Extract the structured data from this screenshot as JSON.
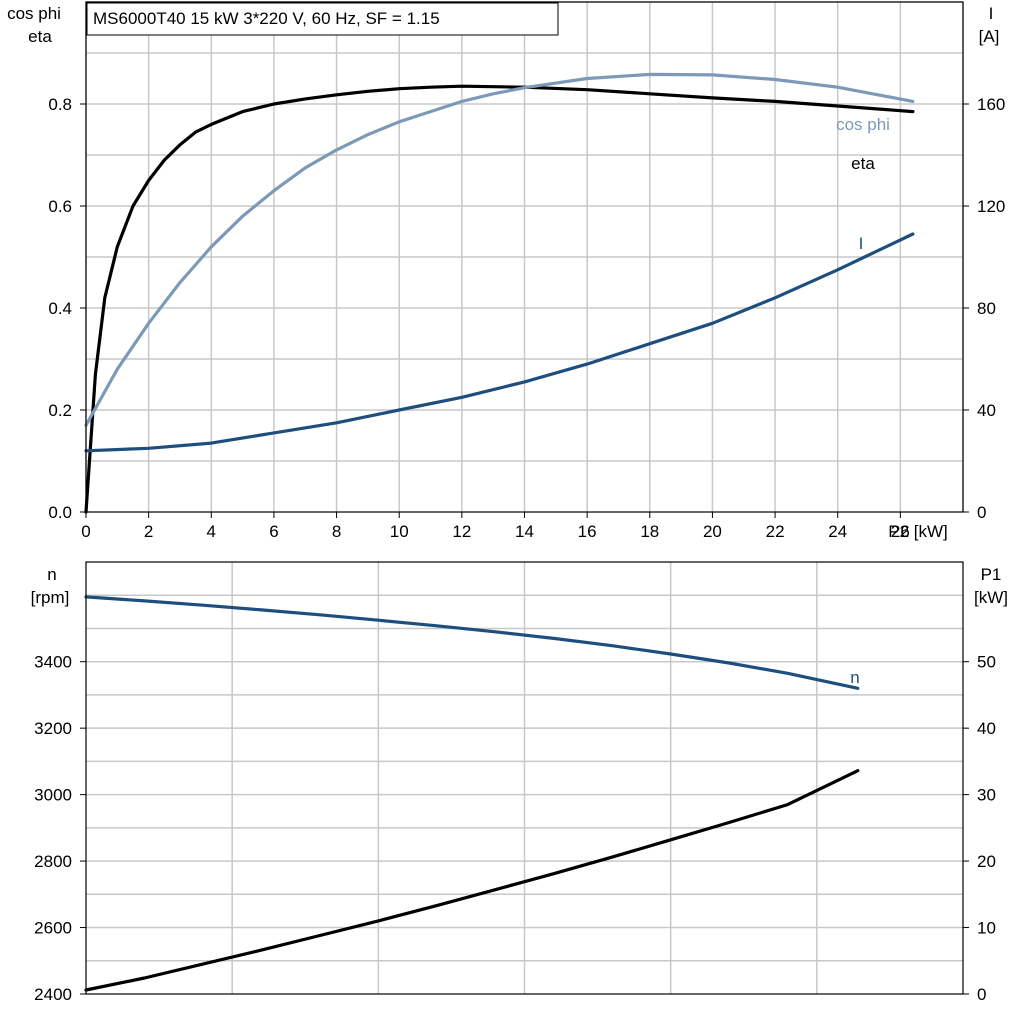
{
  "title_box": "MS6000T40   15 kW   3*220 V, 60 Hz, SF = 1.15",
  "colors": {
    "eta": "#000000",
    "cosphi": "#7c9ab8",
    "current": "#1e4e7e",
    "speed": "#1e4e7e",
    "p1": "#000000",
    "grid": "#c8c8c8"
  },
  "chart_data": [
    {
      "type": "line",
      "title": "MS6000T40   15 kW   3*220 V, 60 Hz, SF = 1.15",
      "xlabel": "P2 [kW]",
      "xlim": [
        0,
        28
      ],
      "xticks": [
        0,
        2,
        4,
        6,
        8,
        10,
        12,
        14,
        16,
        18,
        20,
        22,
        24,
        26
      ],
      "y_left": {
        "label_lines": [
          "cos phi",
          "eta"
        ],
        "lim": [
          0,
          1.0
        ],
        "ticks": [
          0.0,
          0.2,
          0.4,
          0.6,
          0.8
        ],
        "tick_labels": [
          "0.0",
          "0.2",
          "0.4",
          "0.6",
          "0.8"
        ]
      },
      "y_right": {
        "label_lines": [
          "I",
          "[A]"
        ],
        "lim": [
          0,
          200
        ],
        "ticks": [
          0,
          40,
          80,
          120,
          160
        ],
        "tick_labels": [
          "0",
          "40",
          "80",
          "120",
          "160"
        ]
      },
      "grid": true,
      "series": [
        {
          "name": "eta",
          "axis": "left",
          "x": [
            0,
            0.3,
            0.6,
            1,
            1.5,
            2,
            2.5,
            3,
            3.5,
            4,
            5,
            6,
            7,
            8,
            9,
            10,
            11,
            12,
            14,
            16,
            18,
            20,
            22,
            24,
            26.4
          ],
          "y": [
            0.0,
            0.27,
            0.42,
            0.52,
            0.6,
            0.65,
            0.69,
            0.72,
            0.745,
            0.76,
            0.785,
            0.8,
            0.81,
            0.818,
            0.825,
            0.83,
            0.833,
            0.835,
            0.833,
            0.828,
            0.82,
            0.812,
            0.805,
            0.796,
            0.785
          ]
        },
        {
          "name": "cos phi",
          "axis": "left",
          "x": [
            0,
            1,
            2,
            3,
            4,
            5,
            6,
            7,
            8,
            9,
            10,
            11,
            12,
            13,
            14,
            16,
            18,
            20,
            22,
            24,
            26.4
          ],
          "y": [
            0.17,
            0.28,
            0.37,
            0.45,
            0.52,
            0.58,
            0.63,
            0.675,
            0.71,
            0.74,
            0.765,
            0.785,
            0.805,
            0.82,
            0.832,
            0.85,
            0.858,
            0.857,
            0.848,
            0.833,
            0.805
          ]
        },
        {
          "name": "I",
          "axis": "right",
          "x": [
            0,
            2,
            4,
            6,
            8,
            10,
            12,
            14,
            16,
            18,
            20,
            22,
            24,
            26.4
          ],
          "y": [
            24,
            25,
            27,
            31,
            35,
            40,
            45,
            51,
            58,
            66,
            74,
            84,
            95,
            109
          ]
        }
      ]
    },
    {
      "type": "line",
      "xlim": [
        0,
        30
      ],
      "y_left": {
        "label_lines": [
          "n",
          "[rpm]"
        ],
        "lim": [
          2400,
          3700
        ],
        "ticks": [
          2400,
          2600,
          2800,
          3000,
          3200,
          3400
        ],
        "tick_labels": [
          "2400",
          "2600",
          "2800",
          "3000",
          "3200",
          "3400"
        ]
      },
      "y_right": {
        "label_lines": [
          "P1",
          "[kW]"
        ],
        "lim": [
          0,
          65
        ],
        "ticks": [
          0,
          10,
          20,
          30,
          40,
          50
        ],
        "tick_labels": [
          "0",
          "10",
          "20",
          "30",
          "40",
          "50"
        ]
      },
      "grid": true,
      "series": [
        {
          "name": "n",
          "axis": "left",
          "x": [
            0,
            2,
            4,
            6,
            8,
            10,
            12,
            14,
            16,
            18,
            20,
            22,
            24,
            26.4
          ],
          "y": [
            3595,
            3583,
            3570,
            3556,
            3541,
            3525,
            3508,
            3490,
            3470,
            3448,
            3423,
            3396,
            3365,
            3320
          ]
        },
        {
          "axis": "right",
          "x": [
            0,
            2,
            4,
            6,
            8,
            10,
            12,
            14,
            16,
            18,
            20,
            22,
            24,
            26.4
          ],
          "y": [
            0.6,
            2.4,
            4.5,
            6.6,
            8.8,
            11.0,
            13.3,
            15.7,
            18.1,
            20.6,
            23.2,
            25.8,
            28.5,
            33.6
          ]
        }
      ]
    }
  ]
}
